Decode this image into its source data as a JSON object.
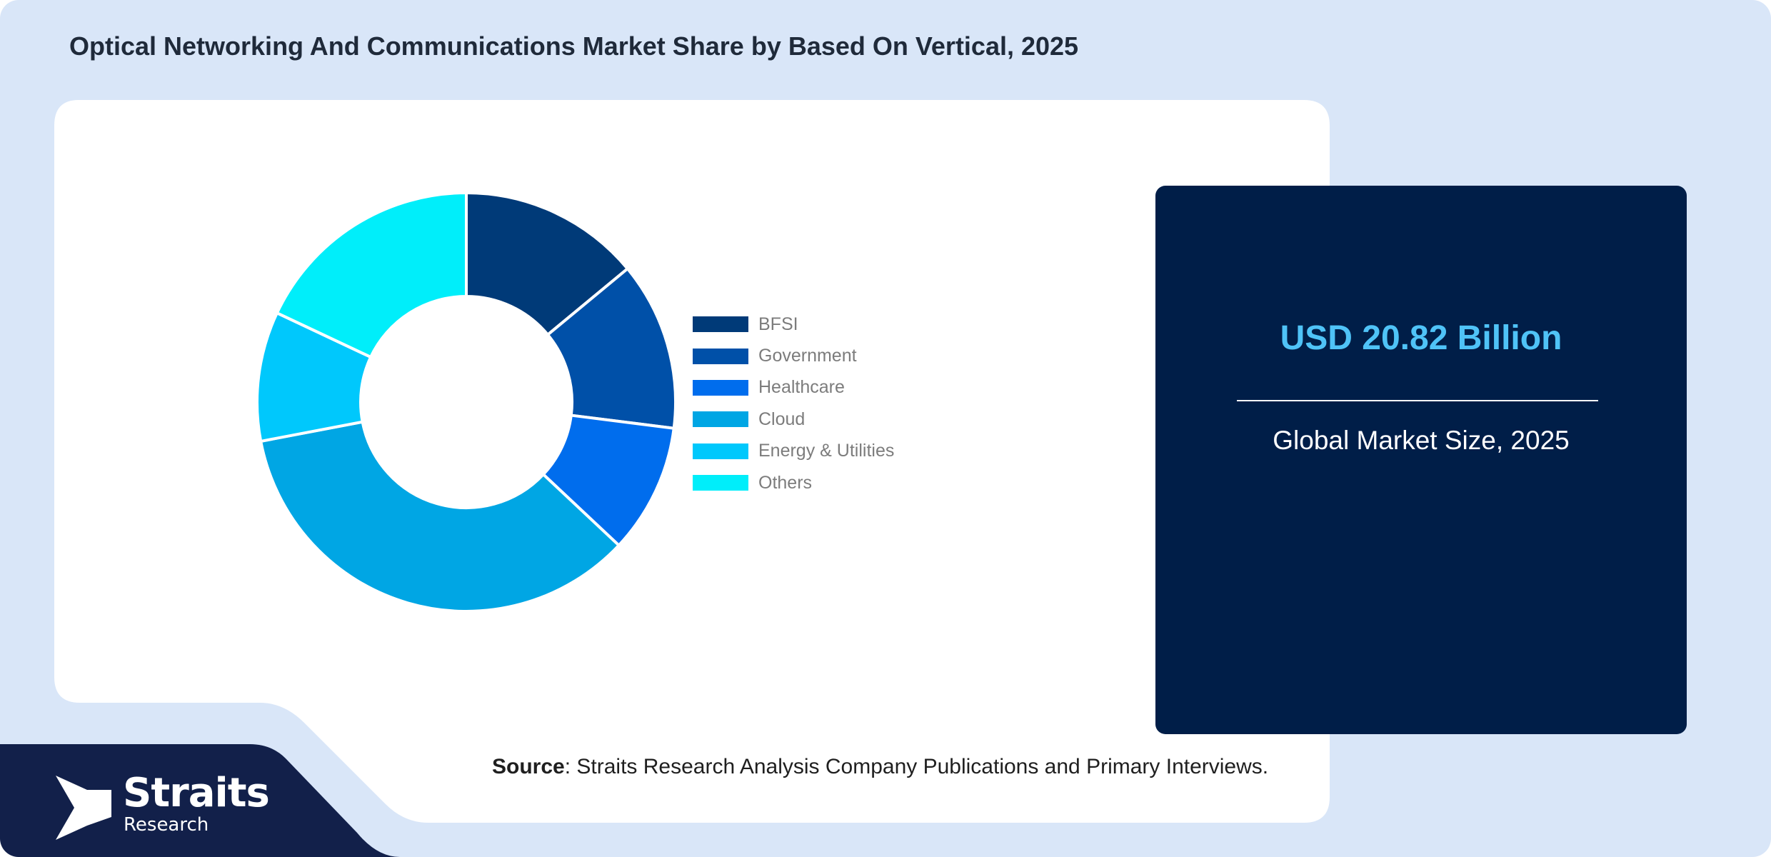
{
  "title": "Optical Networking And Communications Market Share by Based On Vertical, 2025",
  "colors": {
    "background": "#d9e6f8",
    "panel": "#ffffff",
    "card": "#001e48",
    "stat_value": "#4fc3f7",
    "footer_bar": "#12204a"
  },
  "chart_data": {
    "type": "pie",
    "style": "donut",
    "legend_position": "right",
    "categories": [
      "BFSI",
      "Government",
      "Healthcare",
      "Cloud",
      "Energy & Utilities",
      "Others"
    ],
    "values": [
      14,
      13,
      10,
      35,
      10,
      18
    ],
    "colors": [
      "#003a78",
      "#0050a8",
      "#006ded",
      "#00a6e4",
      "#00c8fc",
      "#00eefa"
    ]
  },
  "stat_card": {
    "value": "USD 20.82 Billion",
    "label": "Global Market Size, 2025"
  },
  "source": {
    "label": "Source",
    "text": ": Straits Research Analysis Company Publications and Primary Interviews."
  },
  "logo": {
    "name": "Straits",
    "subtitle": "Research",
    "icon": "straits-arrow-logo-icon"
  }
}
